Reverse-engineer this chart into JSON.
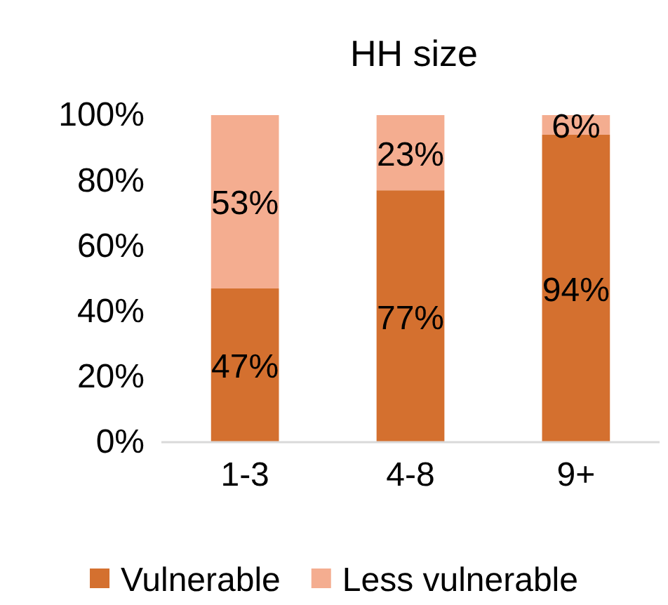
{
  "chart_data": {
    "type": "bar",
    "title": "HH size",
    "categories": [
      "1-3",
      "4-8",
      "9+"
    ],
    "stacked": true,
    "series": [
      {
        "name": "Vulnerable",
        "color": "#d4702f",
        "values": [
          47,
          77,
          94
        ],
        "value_labels": [
          "47%",
          "77%",
          "94%"
        ]
      },
      {
        "name": "Less vulnerable",
        "color": "#f4ad90",
        "values": [
          53,
          23,
          6
        ],
        "value_labels": [
          "53%",
          "23%",
          "6%"
        ]
      }
    ],
    "ylim": [
      0,
      100
    ],
    "yticks": [
      {
        "value": 0,
        "label": "0%"
      },
      {
        "value": 20,
        "label": "20%"
      },
      {
        "value": 40,
        "label": "40%"
      },
      {
        "value": 60,
        "label": "60%"
      },
      {
        "value": 80,
        "label": "80%"
      },
      {
        "value": 100,
        "label": "100%"
      }
    ],
    "grid": false,
    "legend": "bottom"
  }
}
